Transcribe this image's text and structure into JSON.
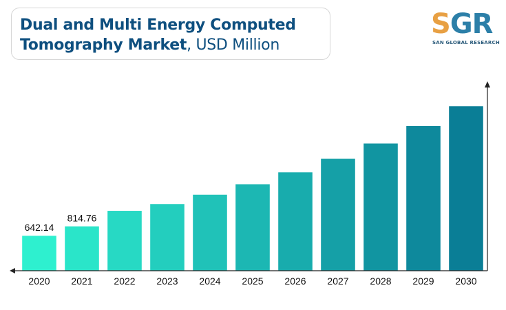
{
  "title": {
    "line1": "Dual and Multi Energy Computed",
    "line2_bold": "Tomography Market",
    "line2_unit": ", USD Million"
  },
  "logo": {
    "mark": "SGR",
    "subtitle": "SAN GLOBAL RESEARCH"
  },
  "colors": {
    "title": "#0e4f7f",
    "bar_start": "#2ef0cf",
    "bar_end": "#0a7e96",
    "axis": "#222222"
  },
  "chart_data": {
    "type": "bar",
    "categories": [
      "2020",
      "2021",
      "2022",
      "2023",
      "2024",
      "2025",
      "2026",
      "2027",
      "2028",
      "2029",
      "2030"
    ],
    "values": [
      642.14,
      814.76,
      1100,
      1224,
      1395,
      1588,
      1806,
      2055,
      2335,
      2656,
      3020
    ],
    "data_labels": [
      "642.14",
      "814.76",
      "",
      "",
      "",
      "",
      "",
      "",
      "",
      "",
      ""
    ],
    "title": "Dual and Multi Energy Computed Tomography Market, USD Million",
    "xlabel": "",
    "ylabel": "",
    "ylim": [
      0,
      3200
    ],
    "grid": false,
    "legend": "none"
  }
}
